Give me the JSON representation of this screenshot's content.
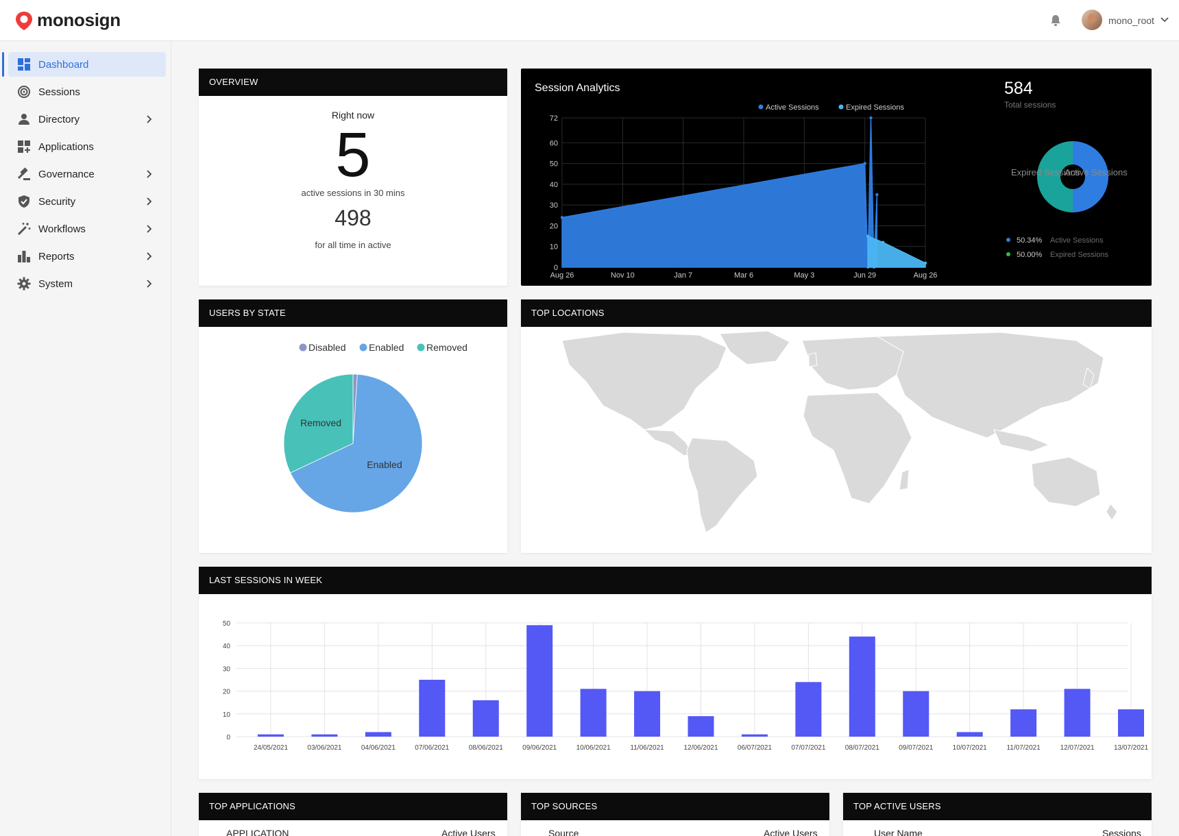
{
  "brand": {
    "name": "monosign",
    "accent": "#ef3b3b"
  },
  "header": {
    "user_name": "mono_root",
    "icons": [
      "bell-icon",
      "avatar",
      "chevron-down-icon"
    ]
  },
  "sidebar": {
    "items": [
      {
        "label": "Dashboard",
        "icon": "dashboard-icon",
        "active": true,
        "chevron": false
      },
      {
        "label": "Sessions",
        "icon": "sessions-icon",
        "active": false,
        "chevron": false
      },
      {
        "label": "Directory",
        "icon": "person-icon",
        "active": false,
        "chevron": true
      },
      {
        "label": "Applications",
        "icon": "apps-icon",
        "active": false,
        "chevron": false
      },
      {
        "label": "Governance",
        "icon": "gavel-icon",
        "active": false,
        "chevron": true
      },
      {
        "label": "Security",
        "icon": "shield-icon",
        "active": false,
        "chevron": true
      },
      {
        "label": "Workflows",
        "icon": "magic-wand-icon",
        "active": false,
        "chevron": true
      },
      {
        "label": "Reports",
        "icon": "bar-chart-icon",
        "active": false,
        "chevron": true
      },
      {
        "label": "System",
        "icon": "gear-icon",
        "active": false,
        "chevron": true
      }
    ]
  },
  "overview": {
    "title": "OVERVIEW",
    "right_now_label": "Right now",
    "active_now": "5",
    "active_now_label": "active sessions in 30 mins",
    "all_time": "498",
    "all_time_label": "for all time in active"
  },
  "session_analytics": {
    "title": "Session Analytics",
    "total": "584",
    "total_label": "Total sessions",
    "donut_labels": {
      "expired": "Expired Sessions",
      "active": "Active Sessions"
    },
    "stats": [
      {
        "percent": "50.34%",
        "label": "Active Sessions",
        "color": "#2f7de1"
      },
      {
        "percent": "50.00%",
        "label": "Expired Sessions",
        "color": "#2dbb4f"
      }
    ],
    "colors": {
      "active": "#2f7de1",
      "expired": "#1aa39a"
    }
  },
  "users_by_state": {
    "title": "USERS BY STATE"
  },
  "top_locations": {
    "title": "TOP LOCATIONS"
  },
  "last_sessions": {
    "title": "LAST SESSIONS IN WEEK"
  },
  "tables": {
    "apps": {
      "title": "TOP APPLICATIONS",
      "col1": "APPLICATION",
      "col2": "Active Users"
    },
    "sources": {
      "title": "TOP SOURCES",
      "col1": "Source",
      "col2": "Active Users"
    },
    "users": {
      "title": "TOP ACTIVE USERS",
      "col1": "User Name",
      "col2": "Sessions"
    }
  },
  "chart_data": [
    {
      "type": "area",
      "title": "",
      "legend": [
        "Active Sessions",
        "Expired Sessions"
      ],
      "legend_placement": "top",
      "x_ticks": [
        "Aug 26",
        "Nov 10",
        "Jan 7",
        "Mar 6",
        "May 3",
        "Jun 29",
        "Aug 26"
      ],
      "y_ticks": [
        0,
        10,
        20,
        30,
        40,
        50,
        60,
        72
      ],
      "ylim": [
        0,
        72
      ],
      "grid": true,
      "series": [
        {
          "name": "Active Sessions",
          "color": "#2f7de1",
          "points": [
            [
              0,
              24
            ],
            [
              5.0,
              50
            ],
            [
              5.05,
              0
            ],
            [
              5.1,
              72
            ],
            [
              5.15,
              0
            ],
            [
              5.2,
              35
            ]
          ]
        },
        {
          "name": "Expired Sessions",
          "color": "#4bb6f3",
          "points": [
            [
              5.05,
              15
            ],
            [
              5.3,
              12
            ],
            [
              6.0,
              2
            ]
          ]
        }
      ]
    },
    {
      "type": "pie",
      "legend": [
        "Disabled",
        "Enabled",
        "Removed"
      ],
      "legend_placement": "top",
      "series": [
        {
          "name": "Disabled",
          "value": 1,
          "color": "#8d94c6"
        },
        {
          "name": "Enabled",
          "value": 67,
          "color": "#66a5e6"
        },
        {
          "name": "Removed",
          "value": 32,
          "color": "#48c1b9"
        }
      ]
    },
    {
      "type": "bar",
      "categories": [
        "24/05/2021",
        "03/06/2021",
        "04/06/2021",
        "07/06/2021",
        "08/06/2021",
        "09/06/2021",
        "10/06/2021",
        "11/06/2021",
        "12/06/2021",
        "06/07/2021",
        "07/07/2021",
        "08/07/2021",
        "09/07/2021",
        "10/07/2021",
        "11/07/2021",
        "12/07/2021",
        "13/07/2021"
      ],
      "values": [
        1,
        1,
        2,
        25,
        16,
        49,
        21,
        20,
        9,
        1,
        24,
        44,
        20,
        2,
        12,
        21,
        12
      ],
      "y_ticks": [
        0,
        10,
        20,
        30,
        40,
        50
      ],
      "ylim": [
        0,
        50
      ],
      "grid": true,
      "color": "#5458f5"
    }
  ]
}
